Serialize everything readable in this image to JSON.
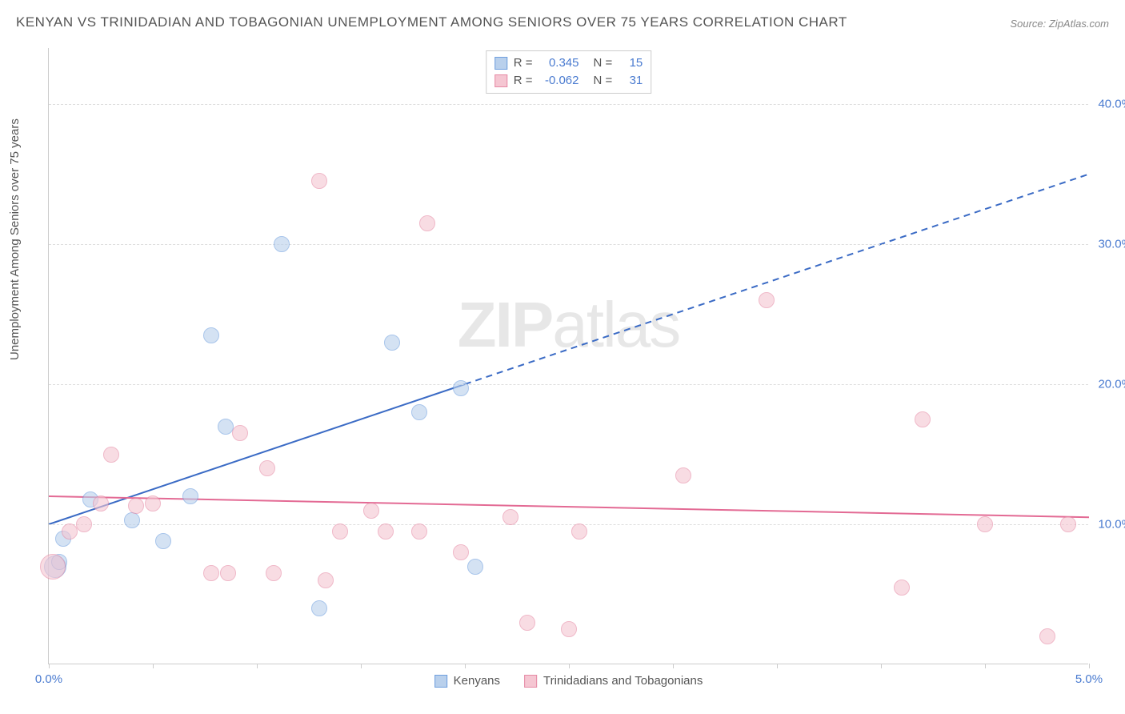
{
  "title": "KENYAN VS TRINIDADIAN AND TOBAGONIAN UNEMPLOYMENT AMONG SENIORS OVER 75 YEARS CORRELATION CHART",
  "source": "Source: ZipAtlas.com",
  "y_axis_label": "Unemployment Among Seniors over 75 years",
  "watermark_bold": "ZIP",
  "watermark_rest": "atlas",
  "chart": {
    "type": "scatter",
    "background_color": "#ffffff",
    "grid_color": "#dddddd",
    "axis_color": "#cccccc",
    "title_fontsize": 17,
    "title_color": "#555555",
    "label_fontsize": 15,
    "tick_label_color": "#4a7bd0",
    "xlim": [
      0.0,
      5.0
    ],
    "ylim": [
      0.0,
      44.0
    ],
    "x_ticks": [
      0.0,
      0.5,
      1.0,
      1.5,
      2.0,
      2.5,
      3.0,
      3.5,
      4.0,
      4.5,
      5.0
    ],
    "x_tick_labels_shown": {
      "0.0": "0.0%",
      "5.0": "5.0%"
    },
    "y_ticks": [
      10.0,
      20.0,
      30.0,
      40.0
    ],
    "y_tick_labels": [
      "10.0%",
      "20.0%",
      "30.0%",
      "40.0%"
    ],
    "series": [
      {
        "name": "Kenyans",
        "fill_color": "#b9d0ec",
        "stroke_color": "#6f9fde",
        "fill_opacity": 0.6,
        "marker_radius_base": 10,
        "points": [
          {
            "x": 0.03,
            "y": 7.0,
            "r": 14
          },
          {
            "x": 0.07,
            "y": 9.0,
            "r": 10
          },
          {
            "x": 0.2,
            "y": 11.8,
            "r": 10
          },
          {
            "x": 0.4,
            "y": 10.3,
            "r": 10
          },
          {
            "x": 0.55,
            "y": 8.8,
            "r": 10
          },
          {
            "x": 0.68,
            "y": 12.0,
            "r": 10
          },
          {
            "x": 0.78,
            "y": 23.5,
            "r": 10
          },
          {
            "x": 0.85,
            "y": 17.0,
            "r": 10
          },
          {
            "x": 1.12,
            "y": 30.0,
            "r": 10
          },
          {
            "x": 1.3,
            "y": 4.0,
            "r": 10
          },
          {
            "x": 1.65,
            "y": 23.0,
            "r": 10
          },
          {
            "x": 1.78,
            "y": 18.0,
            "r": 10
          },
          {
            "x": 1.98,
            "y": 19.7,
            "r": 10
          },
          {
            "x": 2.05,
            "y": 7.0,
            "r": 10
          },
          {
            "x": 0.05,
            "y": 7.3,
            "r": 10
          }
        ],
        "trend": {
          "x1": 0.0,
          "y1": 10.0,
          "x2": 2.0,
          "y2": 20.0,
          "x2_dash": 5.0,
          "y2_dash": 35.0,
          "color": "#3b6bc5",
          "width": 2
        }
      },
      {
        "name": "Trinidadians and Tobagonians",
        "fill_color": "#f5c6d2",
        "stroke_color": "#e68aa5",
        "fill_opacity": 0.6,
        "marker_radius_base": 10,
        "points": [
          {
            "x": 0.02,
            "y": 7.0,
            "r": 16
          },
          {
            "x": 0.1,
            "y": 9.5,
            "r": 10
          },
          {
            "x": 0.17,
            "y": 10.0,
            "r": 10
          },
          {
            "x": 0.25,
            "y": 11.5,
            "r": 10
          },
          {
            "x": 0.3,
            "y": 15.0,
            "r": 10
          },
          {
            "x": 0.42,
            "y": 11.3,
            "r": 10
          },
          {
            "x": 0.5,
            "y": 11.5,
            "r": 10
          },
          {
            "x": 0.78,
            "y": 6.5,
            "r": 10
          },
          {
            "x": 0.86,
            "y": 6.5,
            "r": 10
          },
          {
            "x": 0.92,
            "y": 16.5,
            "r": 10
          },
          {
            "x": 1.05,
            "y": 14.0,
            "r": 10
          },
          {
            "x": 1.08,
            "y": 6.5,
            "r": 10
          },
          {
            "x": 1.3,
            "y": 34.5,
            "r": 10
          },
          {
            "x": 1.33,
            "y": 6.0,
            "r": 10
          },
          {
            "x": 1.4,
            "y": 9.5,
            "r": 10
          },
          {
            "x": 1.55,
            "y": 11.0,
            "r": 10
          },
          {
            "x": 1.62,
            "y": 9.5,
            "r": 10
          },
          {
            "x": 1.78,
            "y": 9.5,
            "r": 10
          },
          {
            "x": 1.82,
            "y": 31.5,
            "r": 10
          },
          {
            "x": 1.98,
            "y": 8.0,
            "r": 10
          },
          {
            "x": 2.22,
            "y": 10.5,
            "r": 10
          },
          {
            "x": 2.3,
            "y": 3.0,
            "r": 10
          },
          {
            "x": 2.5,
            "y": 2.5,
            "r": 10
          },
          {
            "x": 2.55,
            "y": 9.5,
            "r": 10
          },
          {
            "x": 3.05,
            "y": 13.5,
            "r": 10
          },
          {
            "x": 3.45,
            "y": 26.0,
            "r": 10
          },
          {
            "x": 4.1,
            "y": 5.5,
            "r": 10
          },
          {
            "x": 4.2,
            "y": 17.5,
            "r": 10
          },
          {
            "x": 4.5,
            "y": 10.0,
            "r": 10
          },
          {
            "x": 4.8,
            "y": 2.0,
            "r": 10
          },
          {
            "x": 4.9,
            "y": 10.0,
            "r": 10
          }
        ],
        "trend": {
          "x1": 0.0,
          "y1": 12.0,
          "x2": 5.0,
          "y2": 10.5,
          "color": "#e36a94",
          "width": 2
        }
      }
    ],
    "legend_top": [
      {
        "swatch_fill": "#b9d0ec",
        "swatch_stroke": "#6f9fde",
        "r_label": "R =",
        "r_value": "0.345",
        "n_label": "N =",
        "n_value": "15"
      },
      {
        "swatch_fill": "#f5c6d2",
        "swatch_stroke": "#e68aa5",
        "r_label": "R =",
        "r_value": "-0.062",
        "n_label": "N =",
        "n_value": "31"
      }
    ],
    "legend_bottom": [
      {
        "swatch_fill": "#b9d0ec",
        "swatch_stroke": "#6f9fde",
        "label": "Kenyans"
      },
      {
        "swatch_fill": "#f5c6d2",
        "swatch_stroke": "#e68aa5",
        "label": "Trinidadians and Tobagonians"
      }
    ]
  }
}
